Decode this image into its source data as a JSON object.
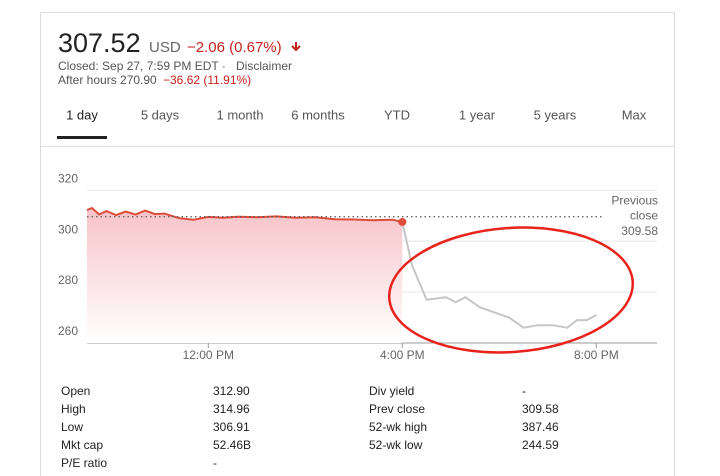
{
  "header": {
    "price": "307.52",
    "currency": "USD",
    "change": "−2.06 (0.67%)",
    "closed": "Closed: Sep 27, 7:59 PM EDT ·",
    "disclaimer": "Disclaimer",
    "after_hours": "After hours 270.90",
    "after_hours_change": "−36.62 (11.91%)"
  },
  "tabs": [
    "1 day",
    "5 days",
    "1 month",
    "6 months",
    "YTD",
    "1 year",
    "5 years",
    "Max"
  ],
  "active_tab": 0,
  "chart_data": {
    "type": "line",
    "xlim": [
      9.5,
      21.25
    ],
    "xticks": [
      {
        "value": 12,
        "label": "12:00 PM"
      },
      {
        "value": 16,
        "label": "4:00 PM"
      },
      {
        "value": 20,
        "label": "8:00 PM"
      }
    ],
    "ylim": [
      260,
      324
    ],
    "yticks": [
      260,
      280,
      300,
      320
    ],
    "grid": true,
    "reference": {
      "label": "Previous close",
      "value": 309.58
    },
    "series": [
      {
        "color": "#dd4b39",
        "fill": true,
        "x": [
          9.5,
          9.6,
          9.75,
          9.9,
          10.1,
          10.3,
          10.5,
          10.7,
          10.9,
          11.1,
          11.4,
          11.7,
          12.0,
          12.3,
          12.6,
          13.0,
          13.4,
          13.8,
          14.2,
          14.6,
          15.0,
          15.4,
          15.8,
          16.0
        ],
        "values": [
          312.2,
          313.0,
          310.5,
          311.8,
          310.2,
          311.6,
          310.4,
          312.0,
          310.6,
          310.8,
          309.0,
          308.4,
          309.5,
          309.2,
          309.6,
          309.4,
          309.7,
          309.2,
          309.4,
          308.6,
          308.5,
          308.2,
          308.4,
          307.52
        ]
      },
      {
        "color": "#c6c6c6",
        "fill": false,
        "x": [
          16.0,
          16.2,
          16.5,
          16.9,
          17.1,
          17.3,
          17.6,
          17.9,
          18.2,
          18.5,
          18.8,
          19.1,
          19.4,
          19.6,
          19.8,
          20.0
        ],
        "values": [
          307.52,
          290.5,
          277.0,
          278.0,
          276.0,
          278.0,
          274.0,
          272.0,
          270.0,
          266.0,
          267.0,
          267.0,
          266.0,
          269.0,
          269.0,
          271.0
        ]
      }
    ]
  },
  "stats": {
    "left": [
      [
        "Open",
        "312.90"
      ],
      [
        "High",
        "314.96"
      ],
      [
        "Low",
        "306.91"
      ],
      [
        "Mkt cap",
        "52.46B"
      ],
      [
        "P/E ratio",
        "-"
      ]
    ],
    "right": [
      [
        "Div yield",
        "-"
      ],
      [
        "Prev close",
        "309.58"
      ],
      [
        "52-wk high",
        "387.46"
      ],
      [
        "52-wk low",
        "244.59"
      ]
    ]
  }
}
